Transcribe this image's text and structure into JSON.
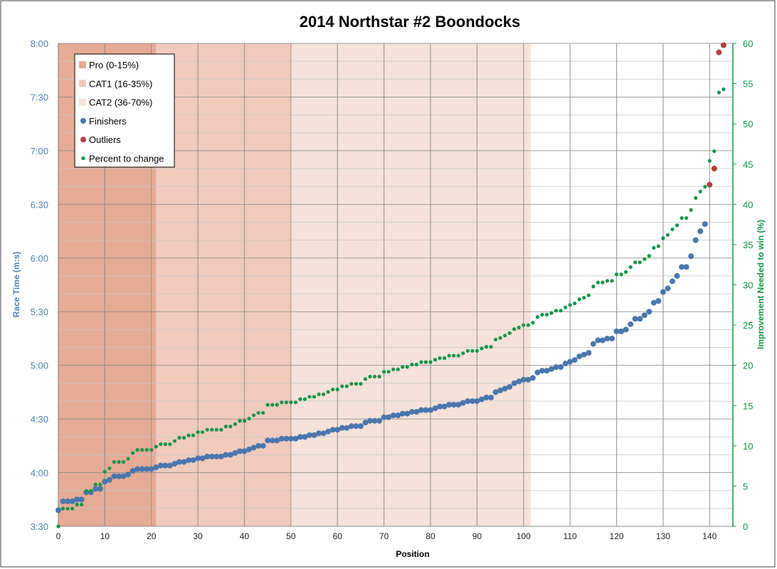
{
  "chart_data": {
    "type": "scatter",
    "title": "2014 Northstar #2 Boondocks",
    "xlabel": "Position",
    "ylabel": "Race Time (m:s)",
    "y2label": "Improvement Needed to win (%)",
    "xlim": [
      0,
      145
    ],
    "ylim_seconds": [
      210,
      480
    ],
    "y2lim": [
      0,
      60
    ],
    "xticks": [
      0,
      10,
      20,
      30,
      40,
      50,
      60,
      70,
      80,
      90,
      100,
      110,
      120,
      130,
      140
    ],
    "yticks": [
      "3:30",
      "4:00",
      "4:30",
      "5:00",
      "5:30",
      "6:00",
      "6:30",
      "7:00",
      "7:30",
      "8:00"
    ],
    "y2ticks": [
      0,
      5,
      10,
      15,
      20,
      25,
      30,
      35,
      40,
      45,
      50,
      55,
      60
    ],
    "legend_position": "top-left",
    "bands": [
      {
        "name": "Pro (0-15%)",
        "x_end": 21,
        "color": "#e6ab95"
      },
      {
        "name": "CAT1 (16-35%)",
        "x_end": 50,
        "color": "#f0cbbd"
      },
      {
        "name": "CAT2 (36-70%)",
        "x_end": 101.5,
        "color": "#f6e2d9"
      }
    ],
    "series": [
      {
        "name": "Finishers",
        "color": "#4a76ad",
        "axis": "left",
        "unit": "seconds",
        "values": [
          219,
          224,
          224,
          224,
          225,
          225,
          229,
          229,
          231,
          231,
          235,
          236,
          238,
          238,
          238,
          239,
          241,
          242,
          242,
          242,
          242,
          243,
          244,
          244,
          244,
          245,
          246,
          246,
          247,
          247,
          248,
          248,
          249,
          249,
          249,
          249,
          250,
          250,
          251,
          252,
          252,
          253,
          254,
          255,
          255,
          258,
          258,
          258,
          259,
          259,
          259,
          259,
          260,
          260,
          261,
          261,
          262,
          262,
          263,
          264,
          264,
          265,
          265,
          266,
          266,
          266,
          268,
          269,
          269,
          269,
          271,
          271,
          272,
          272,
          273,
          273,
          274,
          274,
          275,
          275,
          275,
          276,
          277,
          277,
          278,
          278,
          278,
          279,
          280,
          280,
          280,
          281,
          282,
          282,
          285,
          286,
          287,
          288,
          290,
          291,
          292,
          292,
          293,
          296,
          297,
          297,
          298,
          299,
          299,
          301,
          302,
          303,
          305,
          306,
          307,
          312,
          314,
          314,
          315,
          315,
          319,
          319,
          320,
          323,
          326,
          326,
          328,
          330,
          335,
          336,
          341,
          343,
          347,
          350,
          355,
          355,
          361,
          370,
          375,
          379
        ]
      },
      {
        "name": "Outliers",
        "color": "#b0413e",
        "axis": "left",
        "unit": "seconds",
        "x": [
          140,
          141,
          142,
          143
        ],
        "values": [
          401,
          410,
          475,
          479
        ]
      },
      {
        "name": "Percent to change",
        "color": "#13954a",
        "axis": "right",
        "values": [
          0,
          2.2,
          2.2,
          2.2,
          2.7,
          2.7,
          4.4,
          4.4,
          5.2,
          5.2,
          6.8,
          7.2,
          8.0,
          8.0,
          8.0,
          8.4,
          9.1,
          9.5,
          9.5,
          9.5,
          9.5,
          9.9,
          10.2,
          10.2,
          10.2,
          10.6,
          11.0,
          11.0,
          11.3,
          11.3,
          11.7,
          11.7,
          12.0,
          12.0,
          12.0,
          12.0,
          12.4,
          12.4,
          12.7,
          13.1,
          13.1,
          13.4,
          13.8,
          14.1,
          14.1,
          15.1,
          15.1,
          15.1,
          15.4,
          15.4,
          15.4,
          15.4,
          15.8,
          15.8,
          16.1,
          16.1,
          16.4,
          16.4,
          16.7,
          17.0,
          17.0,
          17.4,
          17.4,
          17.7,
          17.7,
          17.7,
          18.3,
          18.6,
          18.6,
          18.6,
          19.2,
          19.2,
          19.5,
          19.5,
          19.8,
          19.8,
          20.1,
          20.1,
          20.4,
          20.4,
          20.4,
          20.7,
          20.9,
          20.9,
          21.2,
          21.2,
          21.2,
          21.5,
          21.8,
          21.8,
          21.8,
          22.1,
          22.3,
          22.3,
          23.2,
          23.4,
          23.7,
          24.0,
          24.5,
          24.7,
          25.0,
          25.0,
          25.3,
          26.0,
          26.3,
          26.3,
          26.5,
          26.8,
          26.8,
          27.2,
          27.5,
          27.7,
          28.2,
          28.4,
          28.7,
          29.8,
          30.3,
          30.3,
          30.5,
          30.5,
          31.3,
          31.3,
          31.6,
          32.2,
          32.8,
          32.8,
          33.2,
          33.6,
          34.6,
          34.8,
          35.8,
          36.2,
          36.9,
          37.4,
          38.3,
          38.3,
          39.3,
          40.8,
          41.6,
          42.2,
          45.4,
          46.6,
          53.9,
          54.3
        ]
      }
    ]
  }
}
